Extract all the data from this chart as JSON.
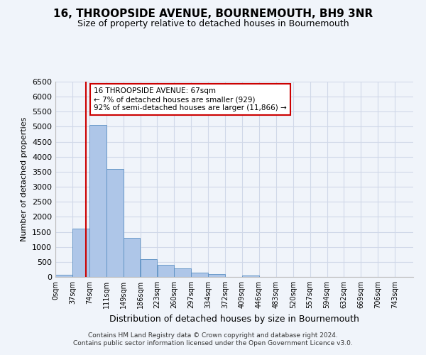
{
  "title": "16, THROOPSIDE AVENUE, BOURNEMOUTH, BH9 3NR",
  "subtitle": "Size of property relative to detached houses in Bournemouth",
  "xlabel": "Distribution of detached houses by size in Bournemouth",
  "ylabel": "Number of detached properties",
  "footer_line1": "Contains HM Land Registry data © Crown copyright and database right 2024.",
  "footer_line2": "Contains public sector information licensed under the Open Government Licence v3.0.",
  "bin_labels": [
    "0sqm",
    "37sqm",
    "74sqm",
    "111sqm",
    "149sqm",
    "186sqm",
    "223sqm",
    "260sqm",
    "297sqm",
    "334sqm",
    "372sqm",
    "409sqm",
    "446sqm",
    "483sqm",
    "520sqm",
    "557sqm",
    "594sqm",
    "632sqm",
    "669sqm",
    "706sqm",
    "743sqm"
  ],
  "bar_values": [
    70,
    1600,
    5050,
    3600,
    1300,
    600,
    400,
    280,
    140,
    100,
    0,
    40,
    10,
    5,
    5,
    2,
    2,
    1,
    1,
    0
  ],
  "bar_color": "#aec6e8",
  "bar_edge_color": "#5a8fc2",
  "grid_color": "#d0d8e8",
  "background_color": "#f0f4fa",
  "property_sqm": 67,
  "property_line_x": 67,
  "annotation_text": "16 THROOPSIDE AVENUE: 67sqm\n← 7% of detached houses are smaller (929)\n92% of semi-detached houses are larger (11,866) →",
  "annotation_box_color": "#cc0000",
  "ylim": [
    0,
    6500
  ],
  "yticks": [
    0,
    500,
    1000,
    1500,
    2000,
    2500,
    3000,
    3500,
    4000,
    4500,
    5000,
    5500,
    6000,
    6500
  ]
}
